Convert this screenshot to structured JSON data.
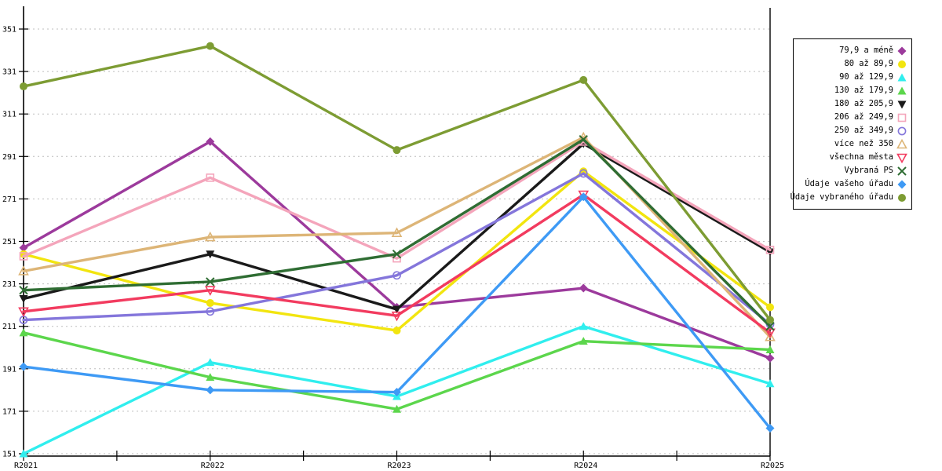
{
  "chart_data": {
    "type": "line",
    "title": "",
    "xlabel": "",
    "ylabel": "",
    "x_labels": [
      "R2021",
      "R2022",
      "R2023",
      "R2024",
      "R2025"
    ],
    "y_ticks": [
      151,
      171,
      191,
      211,
      231,
      251,
      271,
      291,
      311,
      331,
      351
    ],
    "ylim": [
      149,
      361
    ],
    "grid": "horizontal-dotted",
    "grid_color": "#BDBDBD",
    "axis_color": "#000000",
    "background": "#FFFFFF",
    "legend_position": "right",
    "series": [
      {
        "name": "79,9 a méně",
        "color": "#9C3A9C",
        "marker": "diamond-filled",
        "values": [
          248,
          298,
          220,
          229,
          196
        ]
      },
      {
        "name": "80 až 89,9",
        "color": "#F2E50F",
        "marker": "circle-filled",
        "values": [
          245,
          222,
          209,
          284,
          220
        ]
      },
      {
        "name": "90 až 129,9",
        "color": "#30EEEE",
        "marker": "triangle-up-filled",
        "values": [
          151,
          194,
          178,
          211,
          184
        ]
      },
      {
        "name": "130 až 179,9",
        "color": "#5CD64C",
        "marker": "triangle-up-filled",
        "values": [
          208,
          187,
          172,
          204,
          200
        ]
      },
      {
        "name": "180 až 205,9",
        "color": "#1A1A1A",
        "marker": "triangle-down-filled",
        "values": [
          224,
          245,
          219,
          297,
          246
        ]
      },
      {
        "name": "206 až 249,9",
        "color": "#F4A5BB",
        "marker": "square-open",
        "values": [
          244,
          281,
          243,
          298,
          247
        ]
      },
      {
        "name": "250 až 349,9",
        "color": "#8476DB",
        "marker": "circle-open",
        "values": [
          214,
          218,
          235,
          283,
          212
        ]
      },
      {
        "name": "více než 350",
        "color": "#DDB577",
        "marker": "triangle-up-open",
        "values": [
          237,
          253,
          255,
          300,
          206
        ]
      },
      {
        "name": "všechna města",
        "color": "#F23B5F",
        "marker": "triangle-down-open",
        "values": [
          218,
          228,
          216,
          273,
          208
        ]
      },
      {
        "name": "Vybraná PS",
        "color": "#2F6D33",
        "marker": "x",
        "values": [
          228,
          232,
          245,
          299,
          211
        ]
      },
      {
        "name": "Údaje vašeho úřadu",
        "color": "#3E9AF5",
        "marker": "diamond-filled",
        "values": [
          192,
          181,
          180,
          272,
          163
        ]
      },
      {
        "name": "Údaje vybraného úřadu",
        "color": "#7D9C33",
        "marker": "circle-filled",
        "values": [
          324,
          343,
          294,
          327,
          214
        ]
      }
    ]
  }
}
